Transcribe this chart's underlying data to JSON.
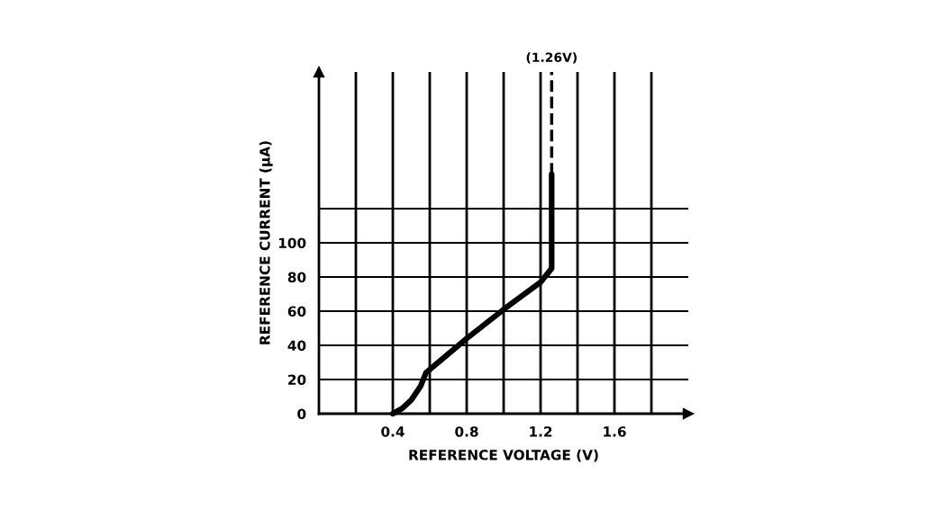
{
  "chart_data": {
    "type": "line",
    "xlabel": "REFERENCE VOLTAGE (V)",
    "ylabel": "REFERENCE CURRENT (µA)",
    "xlim": [
      0,
      2.0
    ],
    "ylim": [
      0,
      200
    ],
    "xticks": [
      {
        "value": 0.2,
        "label": null
      },
      {
        "value": 0.4,
        "label": "0.4"
      },
      {
        "value": 0.6,
        "label": null
      },
      {
        "value": 0.8,
        "label": "0.8"
      },
      {
        "value": 1.0,
        "label": null
      },
      {
        "value": 1.2,
        "label": "1.2"
      },
      {
        "value": 1.4,
        "label": null
      },
      {
        "value": 1.6,
        "label": "1.6"
      },
      {
        "value": 1.8,
        "label": null
      }
    ],
    "yticks": [
      0,
      20,
      40,
      60,
      80,
      100,
      {
        "value": 120,
        "label": null
      }
    ],
    "grid": true,
    "series": [
      {
        "color": "#000000",
        "line_style": "solid",
        "x": [
          0.4,
          0.45,
          0.5,
          0.55,
          0.58,
          0.8,
          1.0,
          1.2,
          1.26,
          1.26
        ],
        "values": [
          0,
          3,
          8,
          16,
          24,
          44,
          61,
          77,
          85,
          140
        ]
      },
      {
        "color": "#000000",
        "line_style": "dashed",
        "x": [
          1.26,
          1.26
        ],
        "values": [
          140,
          200
        ]
      }
    ],
    "annotations": [
      {
        "text": "(1.26V)",
        "x": 1.26,
        "y": 200
      }
    ]
  }
}
